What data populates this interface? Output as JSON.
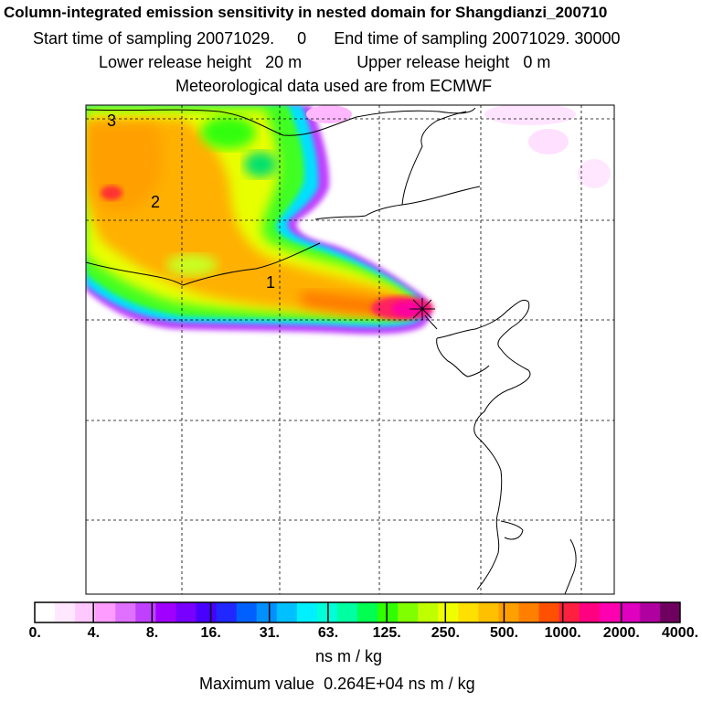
{
  "header": {
    "title": "Column-integrated emission sensitivity in nested domain for Shangdianzi_200710",
    "start_label": "Start time of sampling",
    "start_value": "20071029.     0",
    "end_label": "End time of sampling",
    "end_value": "20071029. 30000",
    "lower_label": "Lower release height",
    "lower_value": "20 m",
    "upper_label": "Upper release height",
    "upper_value": "0 m",
    "met": "Meteorological data used are from ECMWF"
  },
  "map": {
    "day_labels": [
      "1",
      "2",
      "3"
    ],
    "receptor_marker": "receptor-cross"
  },
  "colorbar": {
    "colors": [
      "#ffffff",
      "#ffe8ff",
      "#ffc8ff",
      "#ff9cff",
      "#e070ff",
      "#c040ff",
      "#a000ff",
      "#7800ff",
      "#4800ff",
      "#2028ff",
      "#0060ff",
      "#0090ff",
      "#00c0ff",
      "#00f0ff",
      "#00ffd8",
      "#00ffa0",
      "#00ff50",
      "#30ff00",
      "#80ff00",
      "#c0ff00",
      "#f0ff00",
      "#ffe000",
      "#ffc000",
      "#ffa000",
      "#ff8000",
      "#ff5000",
      "#ff2040",
      "#ff0080",
      "#ff00b0",
      "#e000c0",
      "#b000a0",
      "#700060"
    ],
    "tick_labels": [
      "0.",
      "4.",
      "8.",
      "16.",
      "31.",
      "63.",
      "125.",
      "250.",
      "500.",
      "1000.",
      "2000.",
      "4000."
    ],
    "units": "ns m / kg"
  },
  "footer": {
    "max_label": "Maximum value",
    "max_value": "0.264E+04",
    "max_units": "ns m / kg"
  },
  "colors": {
    "grid": "#000000",
    "coast": "#000000"
  }
}
